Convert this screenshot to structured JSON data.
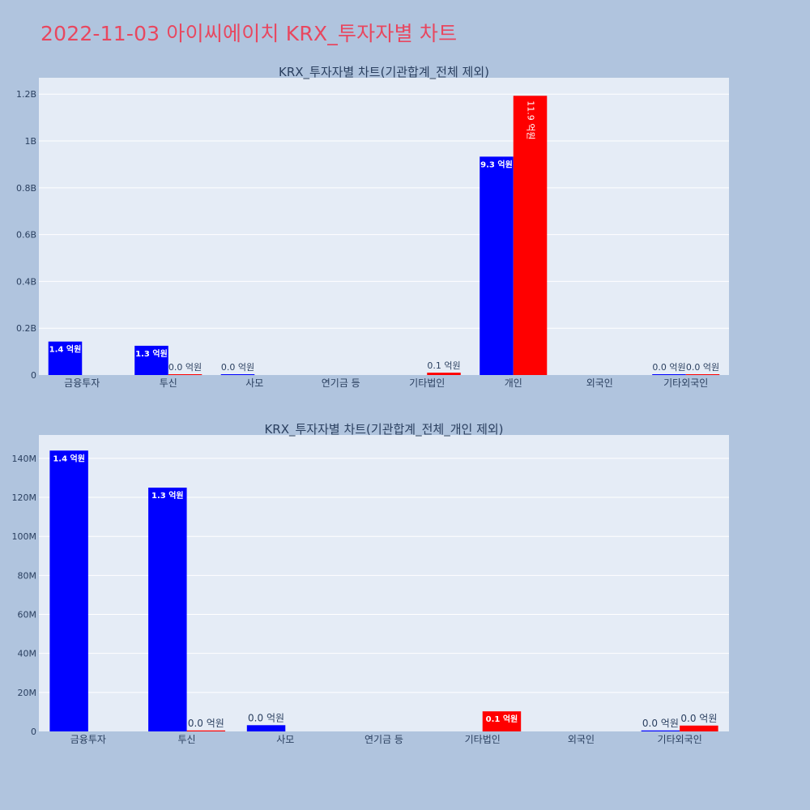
{
  "page": {
    "title": "2022-11-03 아이씨에이치 KRX_투자자별 차트"
  },
  "colors": {
    "background": "#b0c4de",
    "plot_bg": "#e5ecf6",
    "title": "#e8475f",
    "series_a": "#0000ff",
    "series_b": "#ff0000"
  },
  "chart_data": [
    {
      "type": "bar",
      "title": "KRX_투자자별 차트(기관합계_전체 제외)",
      "categories": [
        "금융투자",
        "투신",
        "사모",
        "연기금 등",
        "기타법인",
        "개인",
        "외국인",
        "기타외국인"
      ],
      "series": [
        {
          "color": "#0000ff",
          "values": [
            143000000,
            125000000,
            3000000,
            0,
            0,
            933000000,
            0,
            500000
          ],
          "labels": [
            "1.4 억원",
            "1.3 억원",
            "0.0 억원",
            "",
            "",
            "9.3 억원",
            "",
            "0.0 억원"
          ]
        },
        {
          "color": "#ff0000",
          "values": [
            0,
            500000,
            0,
            0,
            10000000,
            1193000000,
            0,
            3000000
          ],
          "labels": [
            "",
            "0.0 억원",
            "",
            "",
            "0.1 억원",
            "11.9 억원",
            "",
            "0.0 억원"
          ]
        }
      ],
      "ylim": [
        0,
        1270000000
      ],
      "yticks": [
        0,
        200000000,
        400000000,
        600000000,
        800000000,
        1000000000,
        1200000000
      ],
      "ytick_labels": [
        "0",
        "0.2B",
        "0.4B",
        "0.6B",
        "0.8B",
        "1B",
        "1.2B"
      ],
      "grid": true
    },
    {
      "type": "bar",
      "title": "KRX_투자자별 차트(기관합계_전체_개인 제외)",
      "categories": [
        "금융투자",
        "투신",
        "사모",
        "연기금 등",
        "기타법인",
        "외국인",
        "기타외국인"
      ],
      "series": [
        {
          "color": "#0000ff",
          "values": [
            144000000,
            125000000,
            3200000,
            0,
            0,
            0,
            500000
          ],
          "labels": [
            "1.4 억원",
            "1.3 억원",
            "0.0 억원",
            "",
            "",
            "",
            "0.0 억원"
          ]
        },
        {
          "color": "#ff0000",
          "values": [
            0,
            500000,
            0,
            0,
            10300000,
            0,
            3000000
          ],
          "labels": [
            "",
            "0.0 억원",
            "",
            "",
            "0.1 억원",
            "",
            "0.0 억원"
          ]
        }
      ],
      "ylim": [
        0,
        152000000
      ],
      "yticks": [
        0,
        20000000,
        40000000,
        60000000,
        80000000,
        100000000,
        120000000,
        140000000
      ],
      "ytick_labels": [
        "0",
        "20M",
        "40M",
        "60M",
        "80M",
        "100M",
        "120M",
        "140M"
      ],
      "grid": true
    }
  ]
}
